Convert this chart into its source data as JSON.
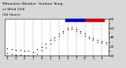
{
  "title": "Milwaukee Weather  Outdoor Temp.",
  "title2": "vs Wind Chill",
  "title3": "(24 Hours)",
  "title_fontsize": 3.2,
  "bg_color": "#d8d8d8",
  "plot_bg": "#ffffff",
  "ylim": [
    20,
    60
  ],
  "yticks": [
    20,
    25,
    30,
    35,
    40,
    45,
    50,
    55,
    60
  ],
  "ytick_labels": [
    "20",
    "",
    "30",
    "",
    "40",
    "",
    "50",
    "",
    "60"
  ],
  "ytick_fontsize": 3.2,
  "xtick_fontsize": 3.0,
  "legend_bar_blue": "#0000cc",
  "legend_bar_red": "#cc0000",
  "grid_color": "#888888",
  "temp_color": "#000000",
  "windchill_color_warm": "#cc0000",
  "windchill_color_cold": "#0000cc",
  "hours": [
    1,
    2,
    3,
    4,
    5,
    6,
    7,
    8,
    9,
    10,
    11,
    12,
    13,
    14,
    15,
    16,
    17,
    18,
    19,
    20,
    21,
    22,
    23,
    24
  ],
  "temperature": [
    28,
    27,
    26,
    26,
    25,
    25,
    24,
    27,
    30,
    33,
    37,
    40,
    44,
    47,
    50,
    51,
    49,
    47,
    44,
    41,
    39,
    37,
    36,
    35
  ],
  "windchill": [
    23,
    22,
    21,
    21,
    20,
    20,
    20,
    22,
    26,
    29,
    33,
    37,
    42,
    45,
    48,
    49,
    47,
    45,
    42,
    39,
    37,
    35,
    34,
    33
  ],
  "tick_positions": [
    1,
    3,
    5,
    7,
    9,
    11,
    13,
    15,
    17,
    19,
    21,
    23
  ],
  "tick_labels": [
    "1",
    "3",
    "5",
    "7",
    "9",
    "1",
    "3",
    "5",
    "7",
    "9",
    "1",
    "3"
  ]
}
